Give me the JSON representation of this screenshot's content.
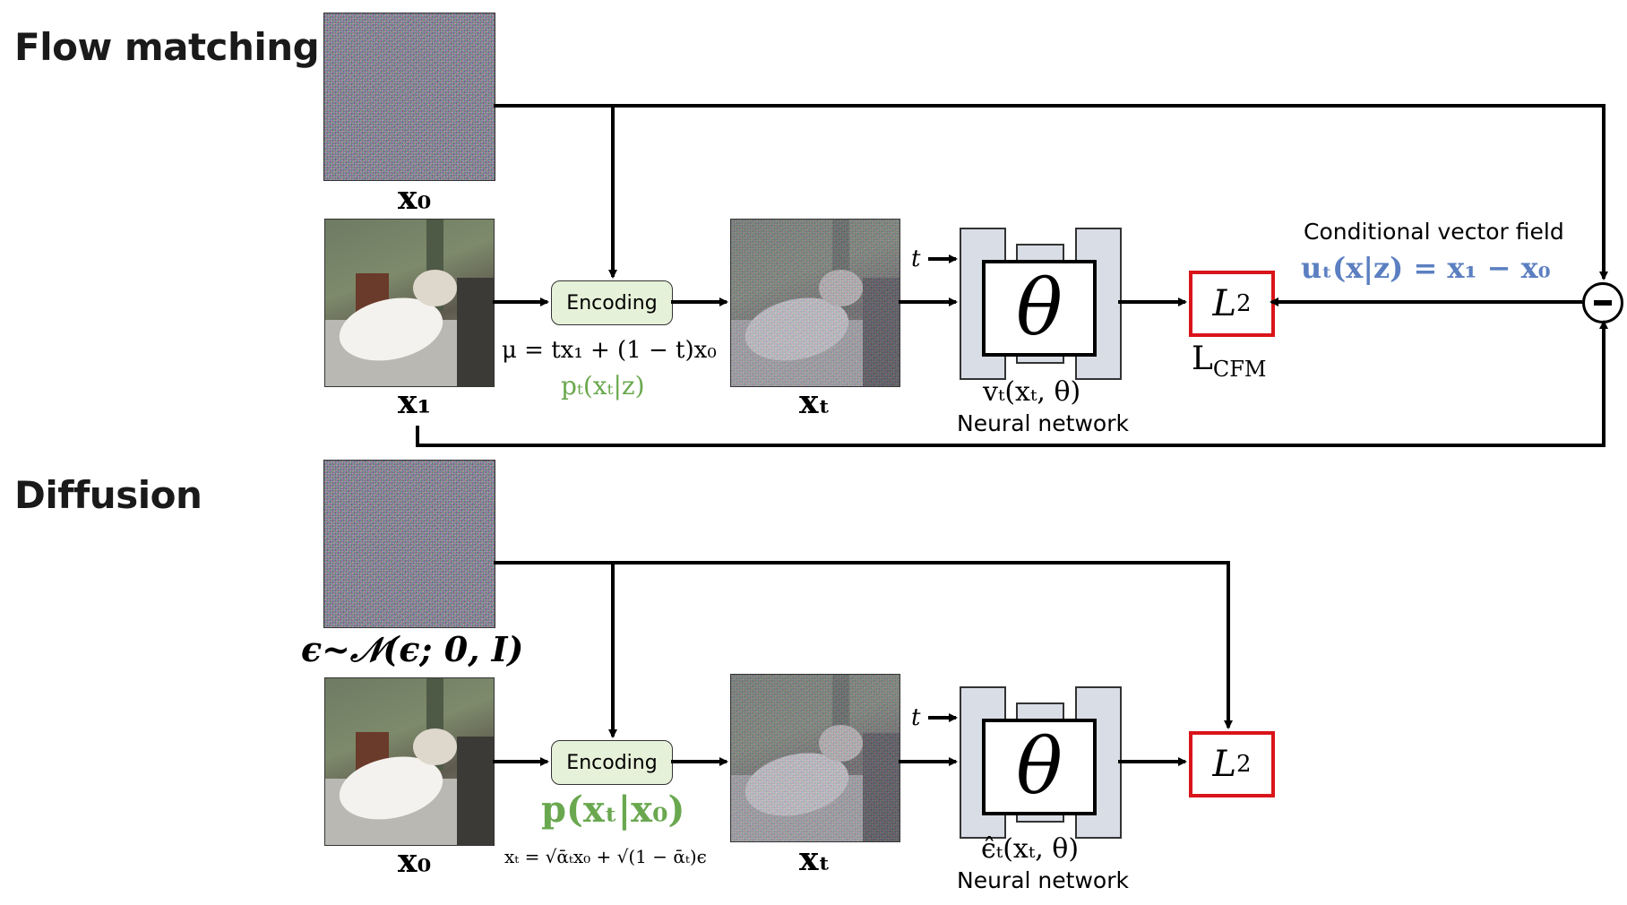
{
  "flow": {
    "title": "Flow matching",
    "x0_label": "x₀",
    "x1_label": "x₁",
    "xt_label": "xₜ",
    "encoding": "Encoding",
    "mu_formula": "μ = tx₁ + (1 − t)x₀",
    "pt_formula": "pₜ(xₜ|z)",
    "t_label": "t",
    "theta": "θ",
    "vt_label": "vₜ(xₜ, θ)",
    "nn_label": "Neural network",
    "loss_symbol": "L",
    "loss_sub": "2",
    "lcfm": "L",
    "lcfm_sub": "CFM",
    "cvf_title": "Conditional vector field",
    "cvf_formula": "uₜ(x|z) = x₁ − x₀"
  },
  "diffusion": {
    "title": "Diffusion",
    "eps_label": "ϵ~𝒩(ϵ; 0, I)",
    "x0_label": "x₀",
    "xt_label": "xₜ",
    "encoding": "Encoding",
    "p_formula": "p(xₜ|x₀)",
    "xt_formula": "xₜ = √ᾱₜx₀ + √(1 − ᾱₜ)ϵ",
    "t_label": "t",
    "theta": "θ",
    "eps_hat_label": "ϵ̂ₜ(xₜ, θ)",
    "nn_label": "Neural network",
    "loss_symbol": "L",
    "loss_sub": "2"
  },
  "colors": {
    "loss_border": "#d9141a",
    "encoding_fill": "#e6f1d9",
    "green_text": "#6aa84f",
    "blue_text": "#5b7fc1",
    "nn_fill": "#d9dde6"
  }
}
